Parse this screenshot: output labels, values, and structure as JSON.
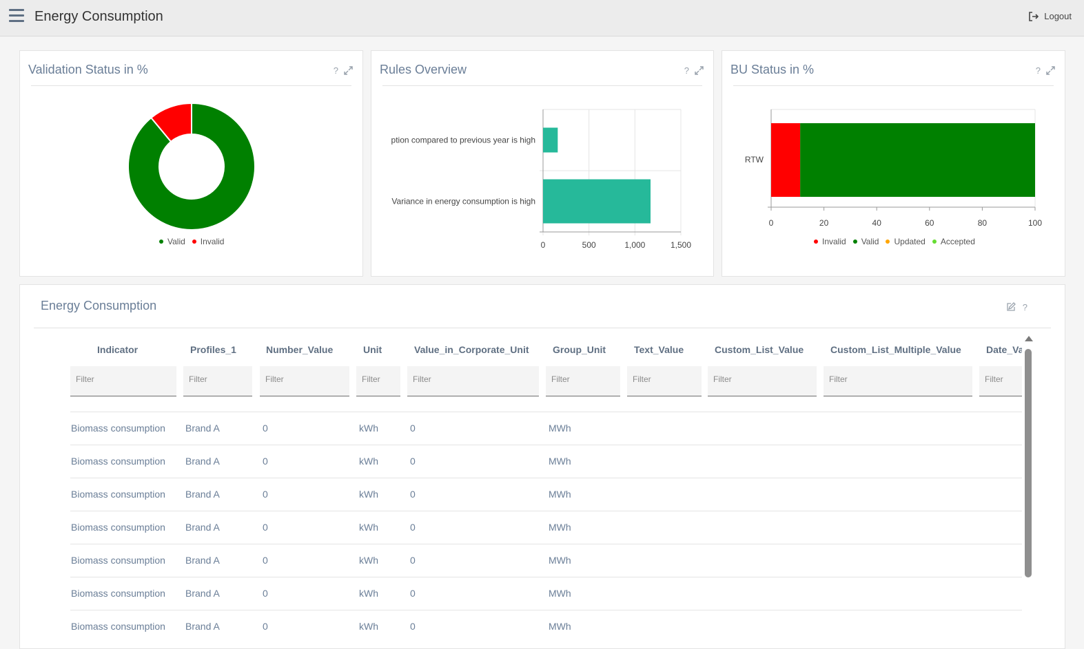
{
  "header": {
    "title": "Energy Consumption",
    "logout_label": "Logout"
  },
  "cards": {
    "validation": {
      "title": "Validation Status in %",
      "help": "?"
    },
    "rules": {
      "title": "Rules Overview",
      "help": "?"
    },
    "bu": {
      "title": "BU Status in %",
      "help": "?"
    }
  },
  "chart_data": [
    {
      "type": "pie",
      "title": "Validation Status in %",
      "donut": true,
      "labels": [
        "Valid",
        "Invalid"
      ],
      "values": [
        89,
        11
      ],
      "colors": [
        "#008000",
        "#ff0000"
      ],
      "legend": "bottom"
    },
    {
      "type": "bar",
      "orientation": "horizontal",
      "title": "Rules Overview",
      "categories": [
        "ption compared to previous year is high",
        "Variance in energy consumption is high"
      ],
      "values": [
        160,
        1170
      ],
      "xlim": [
        0,
        1500
      ],
      "x_ticks": [
        "0",
        "500",
        "1,000",
        "1,500"
      ],
      "color": "#26b99a",
      "grid": true
    },
    {
      "type": "bar",
      "orientation": "horizontal",
      "stacked": true,
      "title": "BU Status in %",
      "categories": [
        "RTW"
      ],
      "series": [
        {
          "name": "Invalid",
          "values": [
            11
          ],
          "color": "#ff0000"
        },
        {
          "name": "Valid",
          "values": [
            89
          ],
          "color": "#008000"
        },
        {
          "name": "Updated",
          "values": [
            0
          ],
          "color": "#ffa500"
        },
        {
          "name": "Accepted",
          "values": [
            0
          ],
          "color": "#66dd33"
        }
      ],
      "xlim": [
        0,
        100
      ],
      "x_ticks": [
        "0",
        "20",
        "40",
        "60",
        "80",
        "100"
      ],
      "legend": "bottom"
    }
  ],
  "table_card": {
    "title": "Energy Consumption",
    "help": "?"
  },
  "table": {
    "columns": [
      "Indicator",
      "Profiles_1",
      "Number_Value",
      "Unit",
      "Value_in_Corporate_Unit",
      "Group_Unit",
      "Text_Value",
      "Custom_List_Value",
      "Custom_List_Multiple_Value",
      "Date_Valu"
    ],
    "filter_placeholder": "Filter",
    "rows": [
      [
        "Biomass consumption",
        "Brand A",
        "0",
        "kWh",
        "0",
        "MWh"
      ],
      [
        "Biomass consumption",
        "Brand A",
        "0",
        "kWh",
        "0",
        "MWh"
      ],
      [
        "Biomass consumption",
        "Brand A",
        "0",
        "kWh",
        "0",
        "MWh"
      ],
      [
        "Biomass consumption",
        "Brand A",
        "0",
        "kWh",
        "0",
        "MWh"
      ],
      [
        "Biomass consumption",
        "Brand A",
        "0",
        "kWh",
        "0",
        "MWh"
      ],
      [
        "Biomass consumption",
        "Brand A",
        "0",
        "kWh",
        "0",
        "MWh"
      ],
      [
        "Biomass consumption",
        "Brand A",
        "0",
        "kWh",
        "0",
        "MWh"
      ]
    ]
  },
  "icons": [
    "menu-icon",
    "logout-icon",
    "help-icon",
    "expand-icon",
    "edit-icon",
    "scroll-up-icon"
  ]
}
